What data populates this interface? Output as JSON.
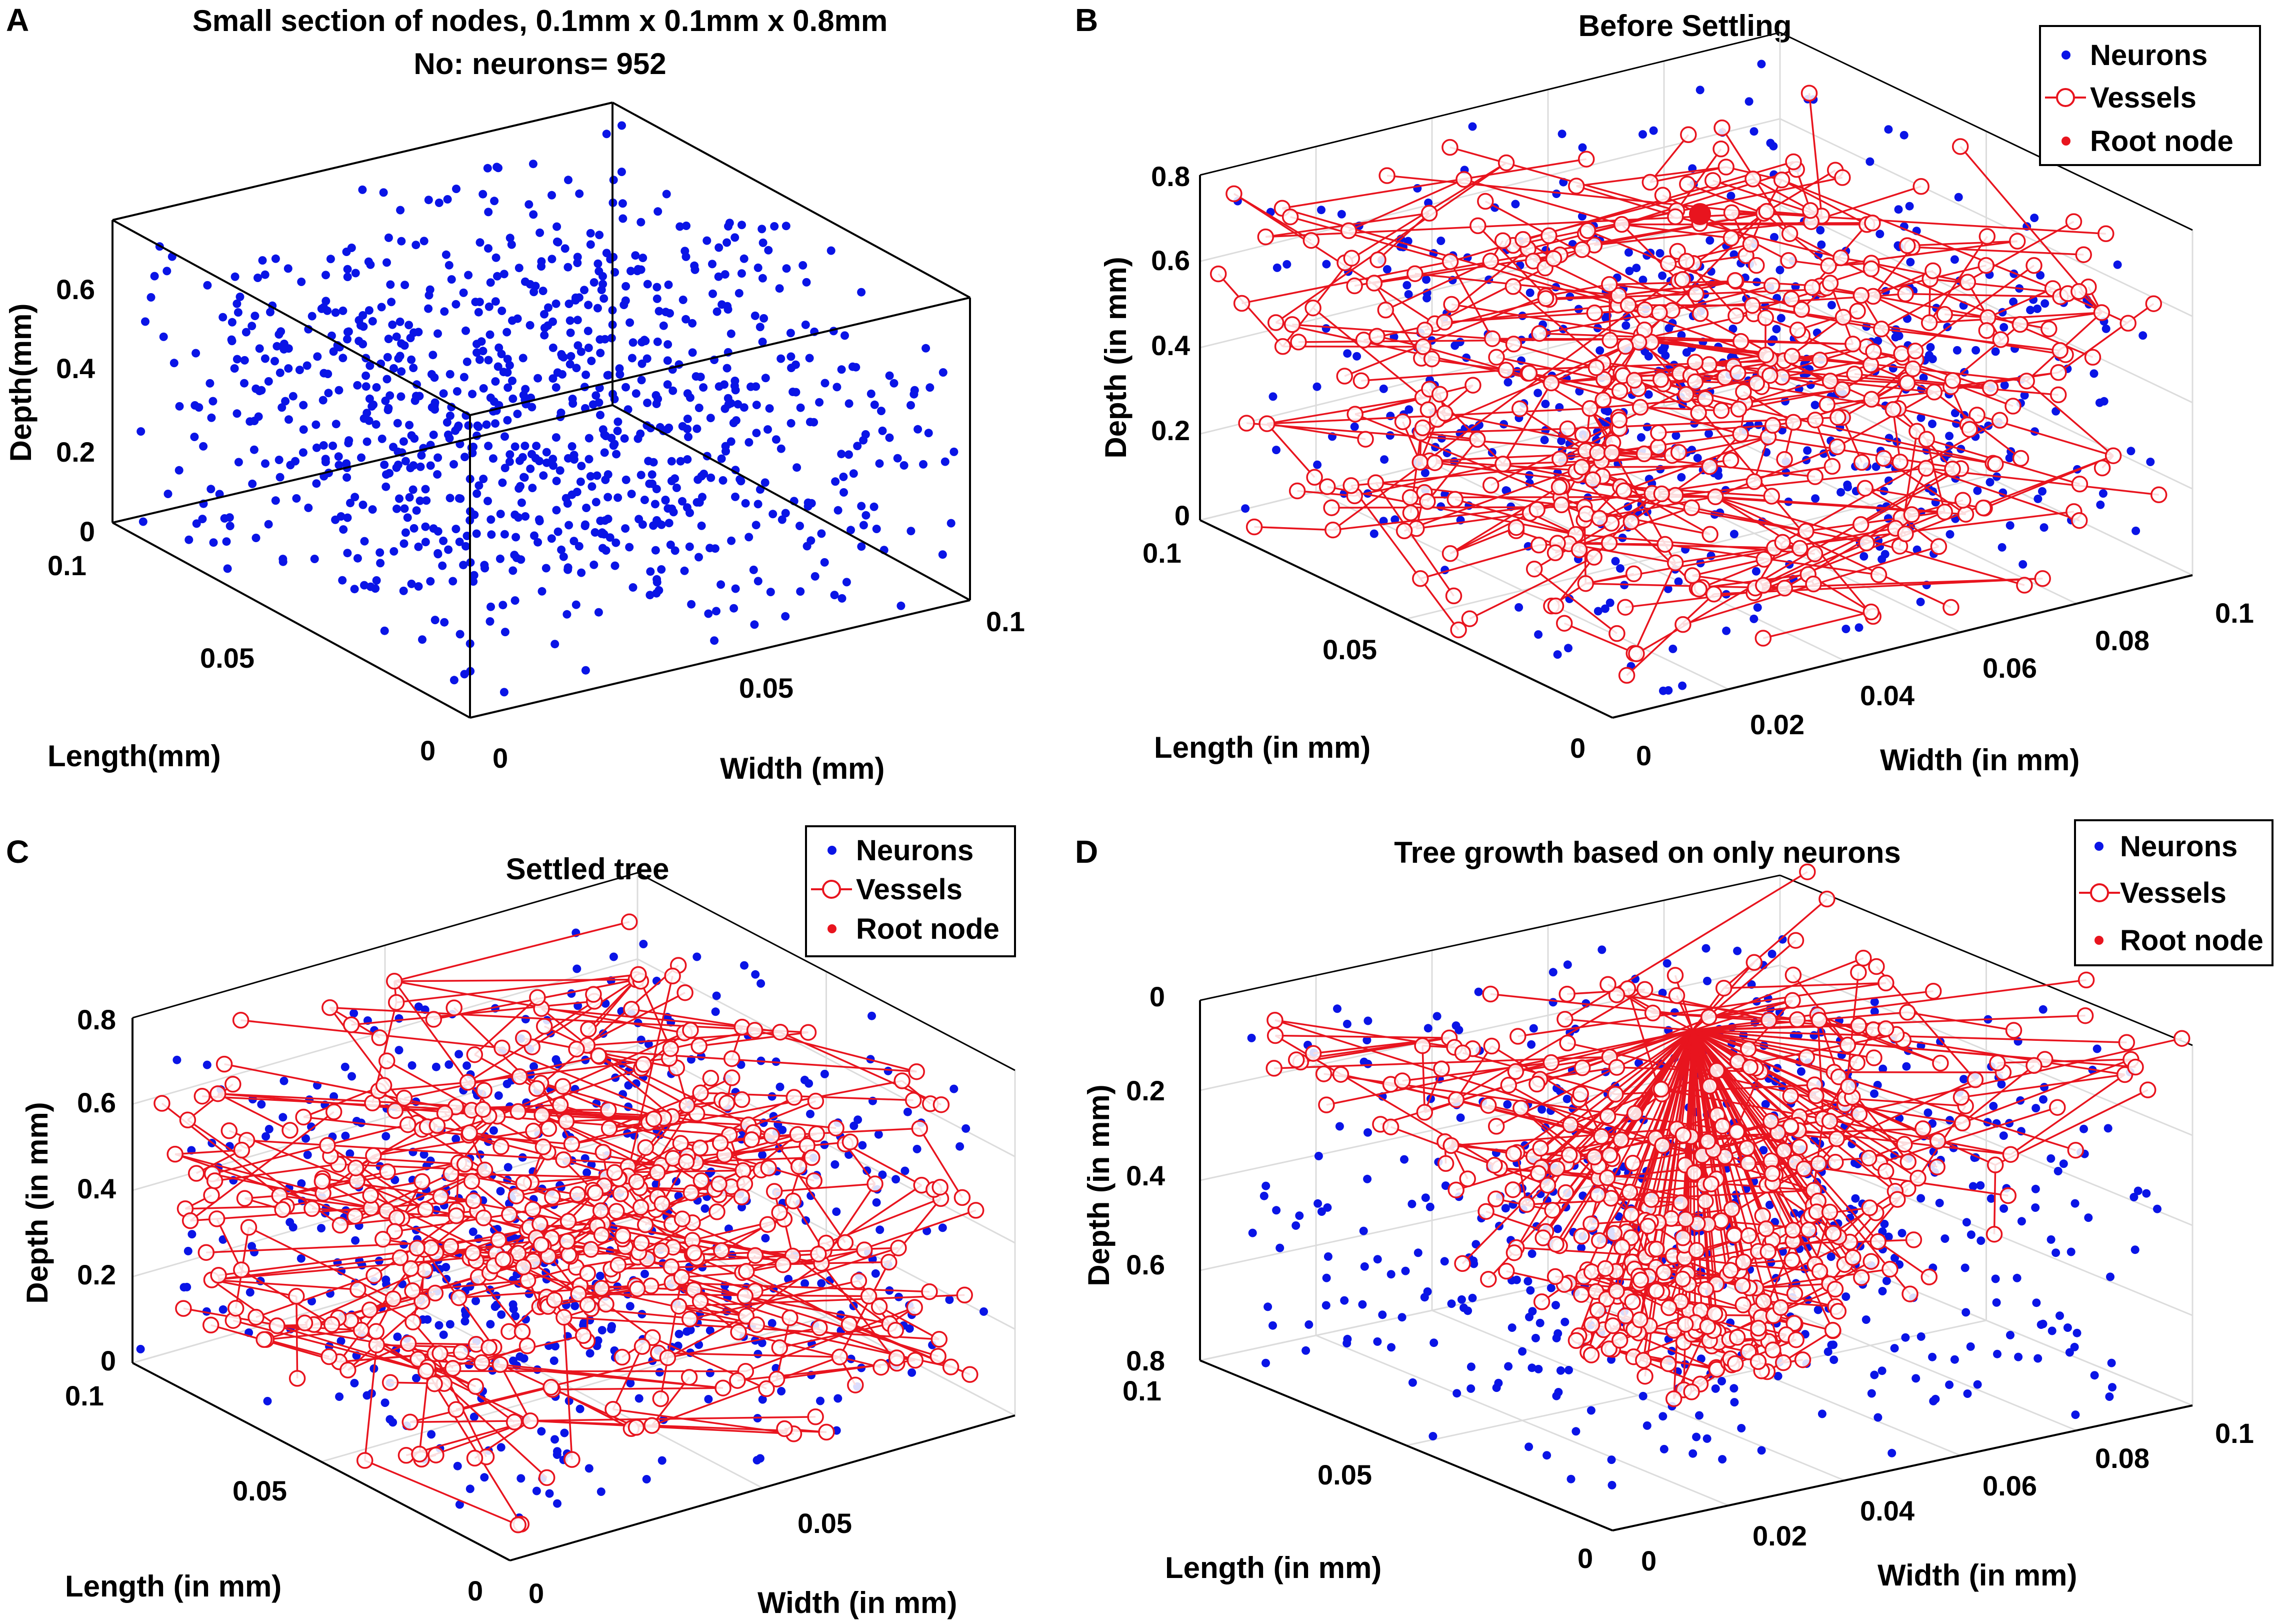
{
  "colors": {
    "neuron": "#0a14e6",
    "vessel": "#e8141e",
    "root": "#e8141e",
    "axis": "#000000",
    "grid": "#dcdcdc"
  },
  "chart_data": [
    {
      "type": "scatter3d",
      "panel_label": "A",
      "title": "Small section of nodes, 0.1mm x 0.1mm x 0.8mm",
      "subtitle": "No: neurons= 952",
      "xlabel": "Width (mm)",
      "ylabel": "Length(mm)",
      "zlabel": "Depth(mm)",
      "x_ticks": [
        "0",
        "0.05",
        "0.1"
      ],
      "y_ticks": [
        "0",
        "0.05",
        "0.1"
      ],
      "z_ticks": [
        "0",
        "0.2",
        "0.4",
        "0.6"
      ],
      "xlim": [
        0,
        0.1
      ],
      "ylim": [
        0,
        0.1
      ],
      "zlim": [
        0,
        0.8
      ],
      "neuron_count": 952,
      "grid": false,
      "legend": null,
      "series": [
        {
          "name": "Neurons",
          "kind": "points",
          "count": 952
        }
      ]
    },
    {
      "type": "scatter3d",
      "panel_label": "B",
      "title": "Before Settling",
      "xlabel": "Width (in mm)",
      "ylabel": "Length (in mm)",
      "zlabel": "Depth (in mm)",
      "x_ticks": [
        "0",
        "0.02",
        "0.04",
        "0.06",
        "0.08",
        "0.1"
      ],
      "y_ticks": [
        "0",
        "0.05",
        "0.1"
      ],
      "z_ticks": [
        "0",
        "0.2",
        "0.4",
        "0.6",
        "0.8"
      ],
      "xlim": [
        0,
        0.1
      ],
      "ylim": [
        0,
        0.1
      ],
      "zlim": [
        0,
        0.8
      ],
      "grid": true,
      "legend": {
        "position": "top-right",
        "entries": [
          "Neurons",
          "Vessels",
          "Root node"
        ]
      },
      "series": [
        {
          "name": "Neurons",
          "kind": "points"
        },
        {
          "name": "Vessels",
          "kind": "tree"
        },
        {
          "name": "Root node",
          "kind": "root"
        }
      ]
    },
    {
      "type": "scatter3d",
      "panel_label": "C",
      "title": "Settled tree",
      "xlabel": "Width (in mm)",
      "ylabel": "Length (in mm)",
      "zlabel": "Depth (in mm)",
      "x_ticks": [
        "0",
        "0.05"
      ],
      "y_ticks": [
        "0",
        "0.05",
        "0.1"
      ],
      "z_ticks": [
        "0",
        "0.2",
        "0.4",
        "0.6",
        "0.8"
      ],
      "xlim": [
        0,
        0.1
      ],
      "ylim": [
        0,
        0.1
      ],
      "zlim": [
        0,
        0.8
      ],
      "grid": true,
      "legend": {
        "position": "top-right",
        "entries": [
          "Neurons",
          "Vessels",
          "Root node"
        ]
      },
      "series": [
        {
          "name": "Neurons",
          "kind": "points"
        },
        {
          "name": "Vessels",
          "kind": "tree"
        },
        {
          "name": "Root node",
          "kind": "root"
        }
      ]
    },
    {
      "type": "scatter3d",
      "panel_label": "D",
      "title": "Tree growth based on only neurons",
      "xlabel": "Width (in mm)",
      "ylabel": "Length (in mm)",
      "zlabel": "Depth (in mm)",
      "x_ticks": [
        "0",
        "0.02",
        "0.04",
        "0.06",
        "0.08",
        "0.1"
      ],
      "y_ticks": [
        "0",
        "0.05",
        "0.1"
      ],
      "z_ticks": [
        "0",
        "0.2",
        "0.4",
        "0.6",
        "0.8"
      ],
      "z_reversed": true,
      "xlim": [
        0,
        0.1
      ],
      "ylim": [
        0,
        0.1
      ],
      "zlim": [
        0,
        0.8
      ],
      "grid": true,
      "legend": {
        "position": "top-right",
        "entries": [
          "Neurons",
          "Vessels",
          "Root node"
        ]
      },
      "series": [
        {
          "name": "Neurons",
          "kind": "points"
        },
        {
          "name": "Vessels",
          "kind": "tree"
        },
        {
          "name": "Root node",
          "kind": "root"
        }
      ]
    }
  ]
}
